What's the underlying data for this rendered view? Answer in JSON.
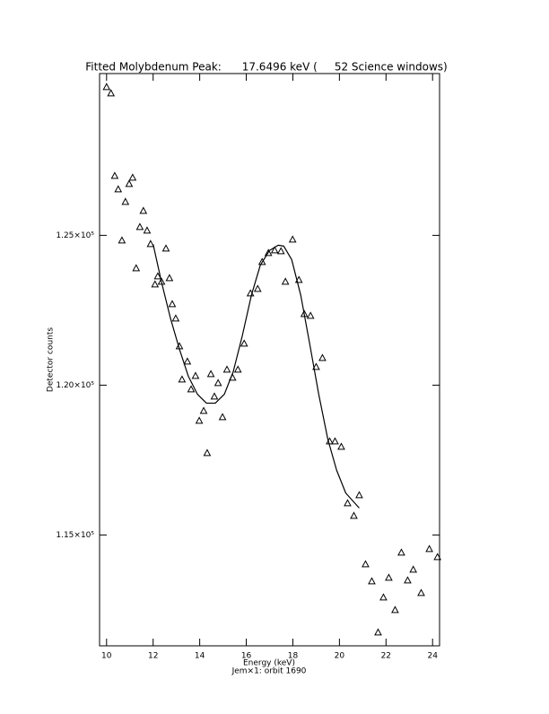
{
  "chart_data": {
    "type": "scatter",
    "title": "Fitted Molybdenum Peak:      17.6496 keV (     52 Science windows)",
    "xlabel": "Energy (keV)",
    "subtitle": "Jem×1: orbit 1690",
    "ylabel": "Detector counts",
    "xlim": [
      9.7,
      24.3
    ],
    "ylim": [
      111300,
      130400
    ],
    "xticks": [
      10,
      12,
      14,
      16,
      18,
      20,
      22,
      24
    ],
    "yticks": [
      {
        "value": 115000,
        "label": "1.15×10⁵"
      },
      {
        "value": 120000,
        "label": "1.20×10⁵"
      },
      {
        "value": 125000,
        "label": "1.25×10⁵"
      }
    ],
    "color": "#000000",
    "points": {
      "x": [
        10.0,
        10.19,
        10.35,
        10.5,
        10.66,
        10.81,
        10.97,
        11.12,
        11.27,
        11.43,
        11.58,
        11.74,
        11.89,
        12.08,
        12.2,
        12.36,
        12.55,
        12.7,
        12.82,
        12.97,
        13.13,
        13.24,
        13.47,
        13.63,
        13.82,
        13.98,
        14.17,
        14.32,
        14.48,
        14.63,
        14.79,
        14.98,
        15.17,
        15.41,
        15.64,
        15.91,
        16.18,
        16.49,
        16.68,
        16.95,
        17.22,
        17.49,
        17.68,
        17.99,
        18.26,
        18.49,
        18.76,
        19.0,
        19.27,
        19.58,
        19.81,
        20.08,
        20.35,
        20.62,
        20.85,
        21.12,
        21.39,
        21.66,
        21.89,
        22.12,
        22.39,
        22.66,
        22.93,
        23.17,
        23.51,
        23.86,
        24.21
      ],
      "y": [
        129940,
        129731,
        126976,
        126527,
        124820,
        126108,
        126707,
        126916,
        123892,
        125269,
        125808,
        125150,
        124701,
        123353,
        123623,
        123443,
        124551,
        123563,
        122695,
        122216,
        121287,
        120180,
        120778,
        119850,
        120299,
        118802,
        119132,
        117725,
        120359,
        119611,
        120060,
        118922,
        120509,
        120240,
        120509,
        121377,
        123054,
        123204,
        124102,
        124401,
        124491,
        124461,
        123443,
        124850,
        123503,
        122365,
        122305,
        120599,
        120898,
        118114,
        118114,
        117934,
        116048,
        115629,
        116317,
        114012,
        113443,
        111737,
        112904,
        113563,
        112485,
        114401,
        113473,
        113832,
        113054,
        114521,
        114252
      ]
    },
    "fit": {
      "x": [
        12.0,
        12.36,
        12.74,
        13.13,
        13.51,
        13.9,
        14.29,
        14.67,
        15.06,
        15.44,
        15.83,
        16.22,
        16.6,
        16.99,
        17.37,
        17.61,
        17.95,
        18.34,
        18.73,
        19.11,
        19.5,
        19.88,
        20.27,
        20.85
      ],
      "y": [
        124700,
        123440,
        122245,
        121200,
        120300,
        119700,
        119400,
        119400,
        119700,
        120450,
        121650,
        123000,
        124000,
        124490,
        124670,
        124640,
        124190,
        123000,
        121350,
        119700,
        118200,
        117160,
        116400,
        115900
      ]
    }
  }
}
